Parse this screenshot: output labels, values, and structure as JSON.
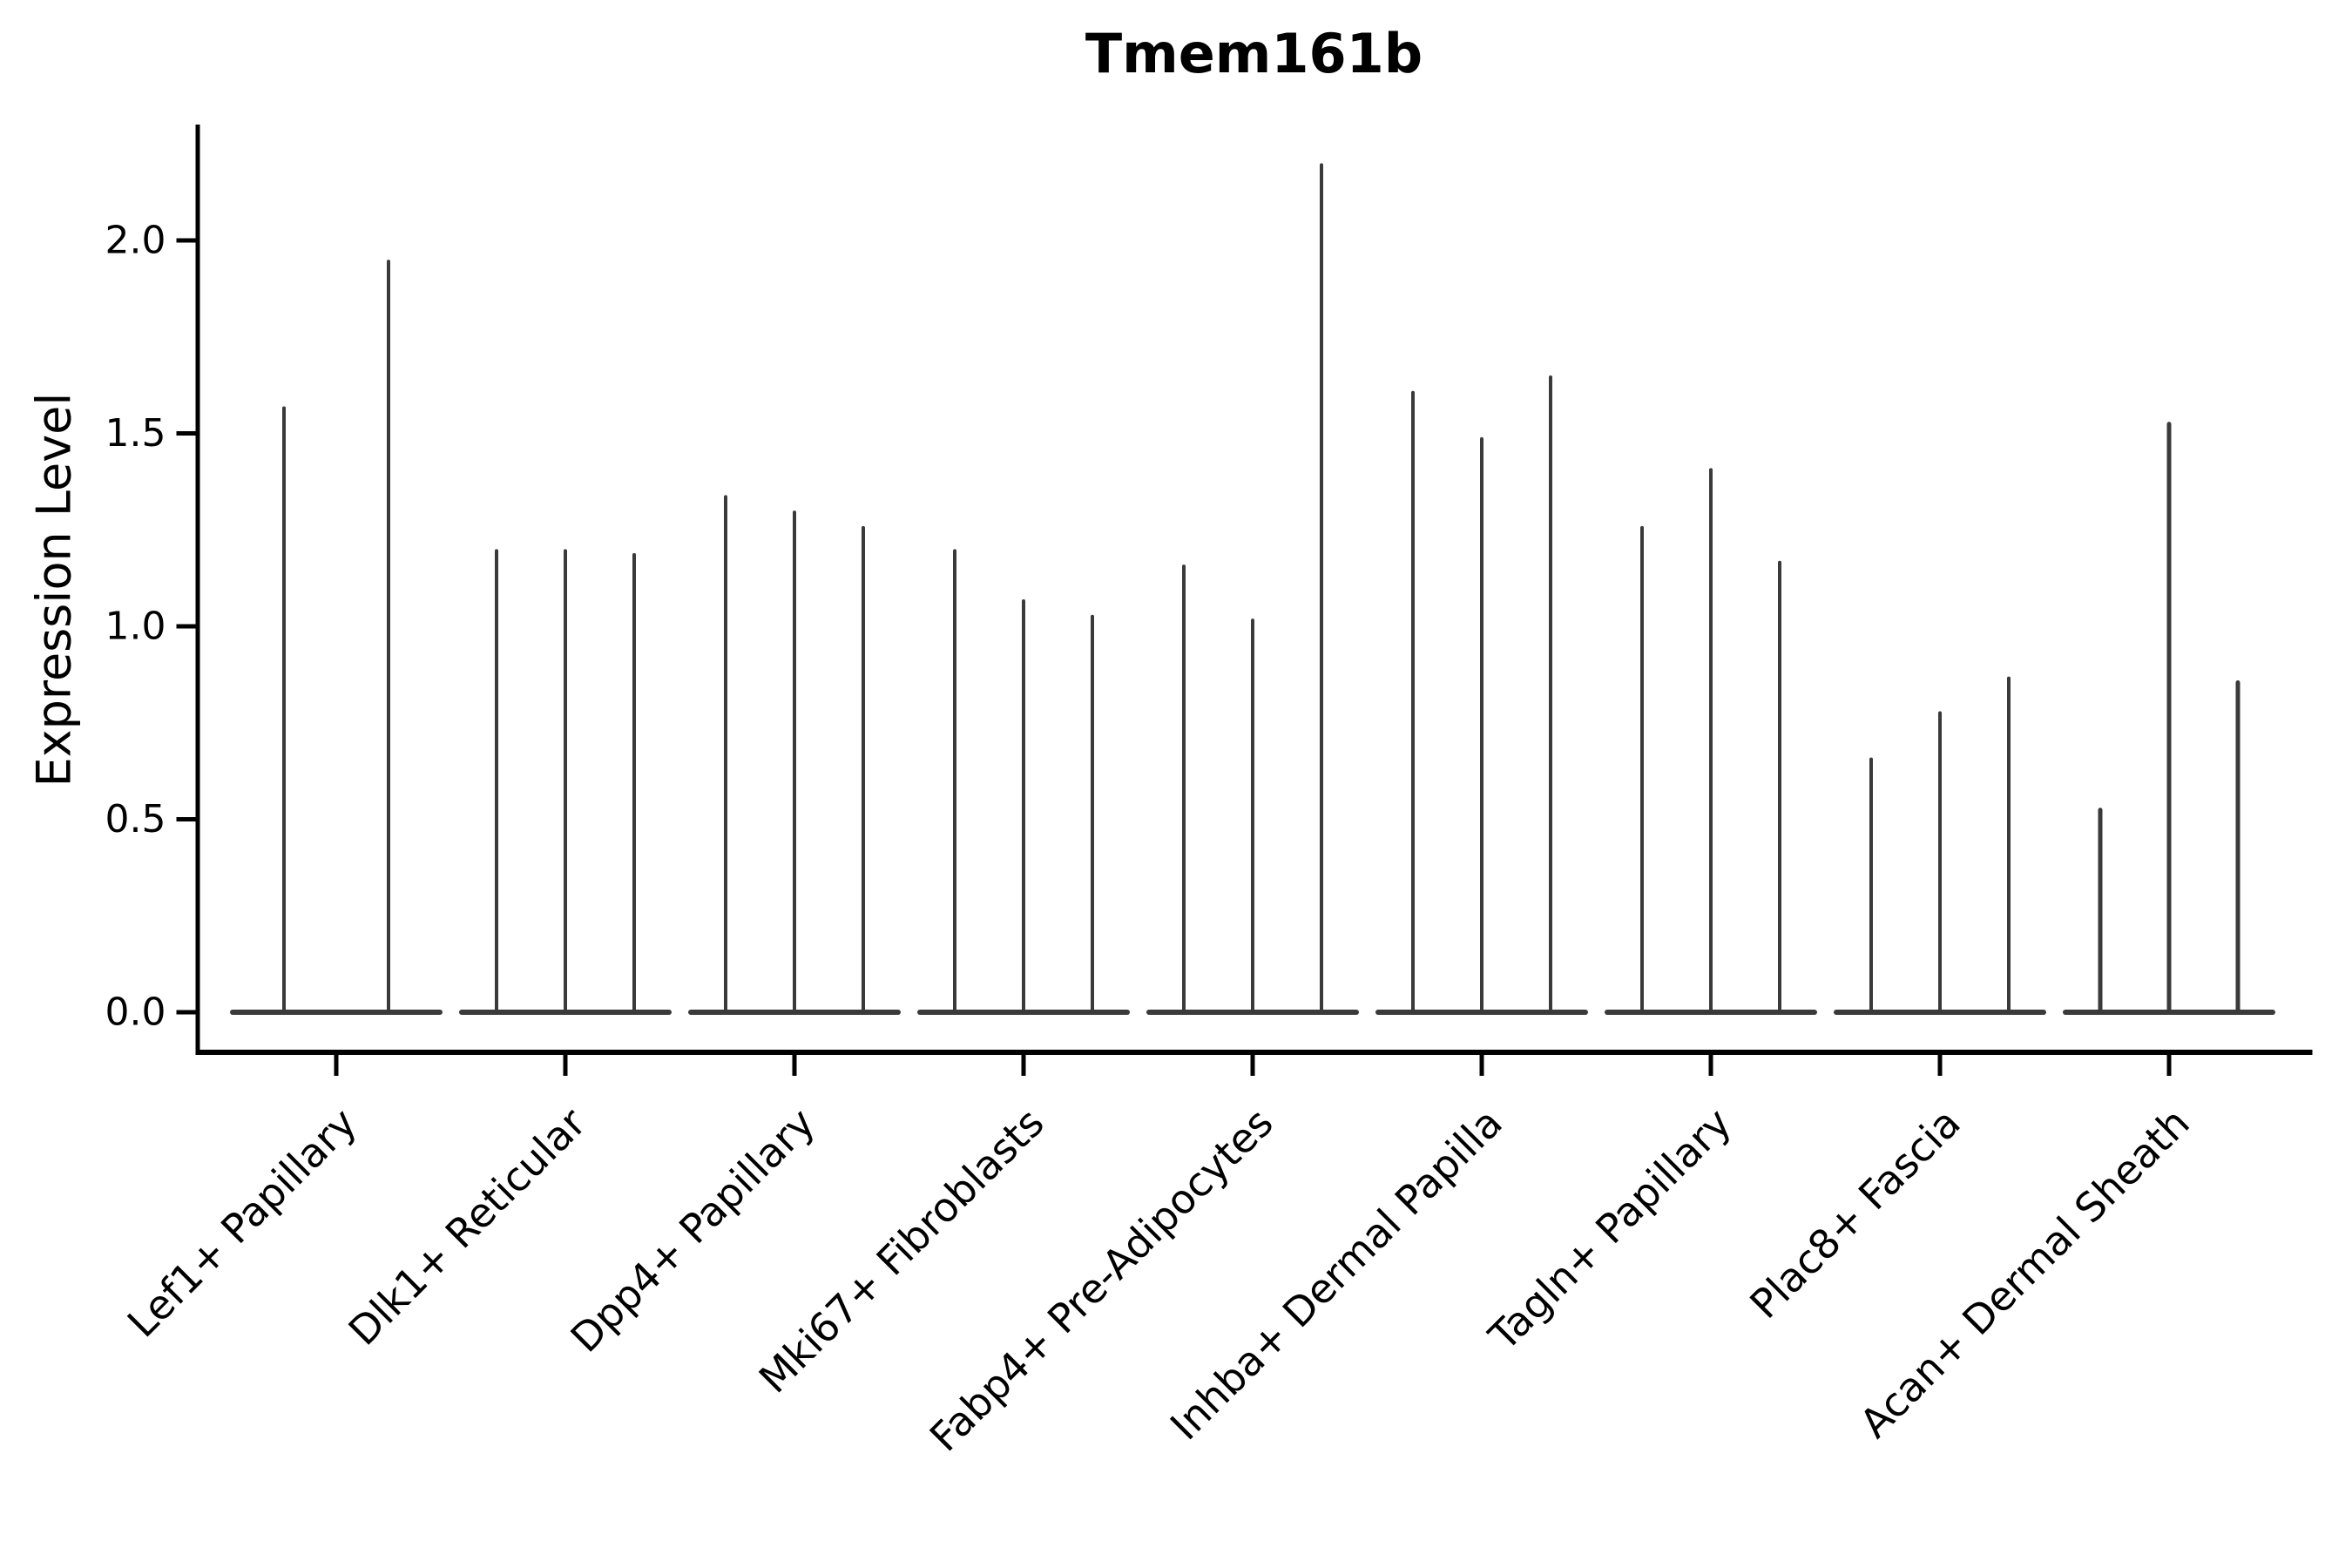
{
  "chart_data": {
    "type": "violin",
    "title": "Tmem161b",
    "ylabel": "Expression Level",
    "xlabel": "",
    "yticks": [
      0.0,
      0.5,
      1.0,
      1.5,
      2.0
    ],
    "ytick_labels": [
      "0.0",
      "0.5",
      "1.0",
      "1.5",
      "2.0"
    ],
    "ylim": [
      -0.11,
      2.3
    ],
    "grid": false,
    "legend": "none",
    "background": "#ffffff",
    "categories": [
      "Lef1+ Papillary",
      "Dlk1+ Reticular",
      "Dpp4+ Papillary",
      "Mki67+ Fibroblasts",
      "Fabp4+ Pre-Adipocytes",
      "Inhba+ Dermal Papilla",
      "Tagln+ Papillary",
      "Plac8+ Fascia",
      "Acan+ Dermal Sheath"
    ],
    "series": [
      {
        "category": "Lef1+ Papillary",
        "violin_peak_expression": [
          1.57,
          1.95
        ]
      },
      {
        "category": "Dlk1+ Reticular",
        "violin_peak_expression": [
          1.2,
          1.2,
          1.19
        ]
      },
      {
        "category": "Dpp4+ Papillary",
        "violin_peak_expression": [
          1.34,
          1.3,
          1.26
        ]
      },
      {
        "category": "Mki67+ Fibroblasts",
        "violin_peak_expression": [
          1.2,
          1.07,
          1.03
        ]
      },
      {
        "category": "Fabp4+ Pre-Adipocytes",
        "violin_peak_expression": [
          1.16,
          1.02,
          2.2
        ]
      },
      {
        "category": "Inhba+ Dermal Papilla",
        "violin_peak_expression": [
          1.61,
          1.49,
          1.65
        ]
      },
      {
        "category": "Tagln+ Papillary",
        "violin_peak_expression": [
          1.26,
          1.41,
          1.17
        ]
      },
      {
        "category": "Plac8+ Fascia",
        "violin_peak_expression": [
          0.66,
          0.78,
          0.87
        ]
      },
      {
        "category": "Acan+ Dermal Sheath",
        "violin_peak_expression": [
          0.53,
          1.53,
          0.86
        ]
      }
    ],
    "violin_body_value": 0.0,
    "colors": {
      "violin": "#3a3a3a",
      "axis": "#000000",
      "text": "#000000",
      "background": "#ffffff"
    }
  }
}
